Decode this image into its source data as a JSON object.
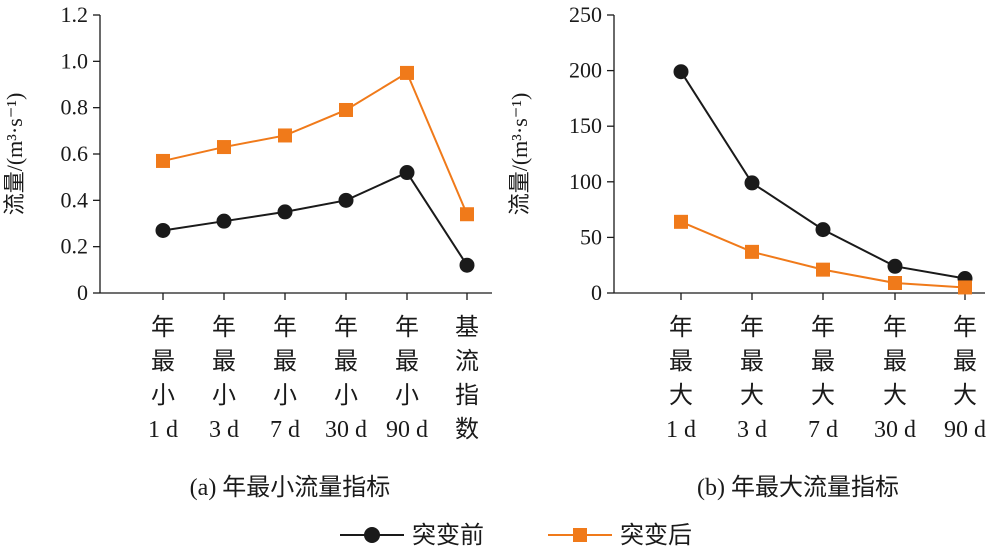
{
  "chart_data": [
    {
      "type": "line",
      "caption": "(a) 年最小流量指标",
      "ylabel": "流量/(m³·s⁻¹)",
      "ylim": [
        0,
        1.2
      ],
      "yticks": [
        "0",
        "0.2",
        "0.4",
        "0.6",
        "0.8",
        "1.0",
        "1.2"
      ],
      "ytick_values": [
        0,
        0.2,
        0.4,
        0.6,
        0.8,
        1.0,
        1.2
      ],
      "categories": [
        [
          "年",
          "最",
          "小",
          "1 d"
        ],
        [
          "年",
          "最",
          "小",
          "3 d"
        ],
        [
          "年",
          "最",
          "小",
          "7 d"
        ],
        [
          "年",
          "最",
          "小",
          "30 d"
        ],
        [
          "年",
          "最",
          "小",
          "90 d"
        ],
        [
          "基",
          "流",
          "指",
          "数"
        ]
      ],
      "series": [
        {
          "name": "突变前",
          "values": [
            0.27,
            0.31,
            0.35,
            0.4,
            0.52,
            0.12
          ]
        },
        {
          "name": "突变后",
          "values": [
            0.57,
            0.63,
            0.68,
            0.79,
            0.95,
            0.34
          ]
        }
      ]
    },
    {
      "type": "line",
      "caption": "(b) 年最大流量指标",
      "ylabel": "流量/(m³·s⁻¹)",
      "ylim": [
        0,
        250
      ],
      "yticks": [
        "0",
        "50",
        "100",
        "150",
        "200",
        "250"
      ],
      "ytick_values": [
        0,
        50,
        100,
        150,
        200,
        250
      ],
      "categories": [
        [
          "年",
          "最",
          "大",
          "1 d"
        ],
        [
          "年",
          "最",
          "大",
          "3 d"
        ],
        [
          "年",
          "最",
          "大",
          "7 d"
        ],
        [
          "年",
          "最",
          "大",
          "30 d"
        ],
        [
          "年",
          "最",
          "大",
          "90 d"
        ]
      ],
      "series": [
        {
          "name": "突变前",
          "values": [
            199,
            99,
            57,
            24,
            13
          ]
        },
        {
          "name": "突变后",
          "values": [
            64,
            37,
            21,
            9,
            5
          ]
        }
      ]
    }
  ],
  "legend": [
    {
      "name": "突变前",
      "marker": "circle",
      "color": "#1a1a1a"
    },
    {
      "name": "突变后",
      "marker": "square",
      "color": "#f07a1a"
    }
  ],
  "colors": {
    "before": "#1a1a1a",
    "after": "#f07a1a",
    "axis": "#1a1a1a"
  }
}
